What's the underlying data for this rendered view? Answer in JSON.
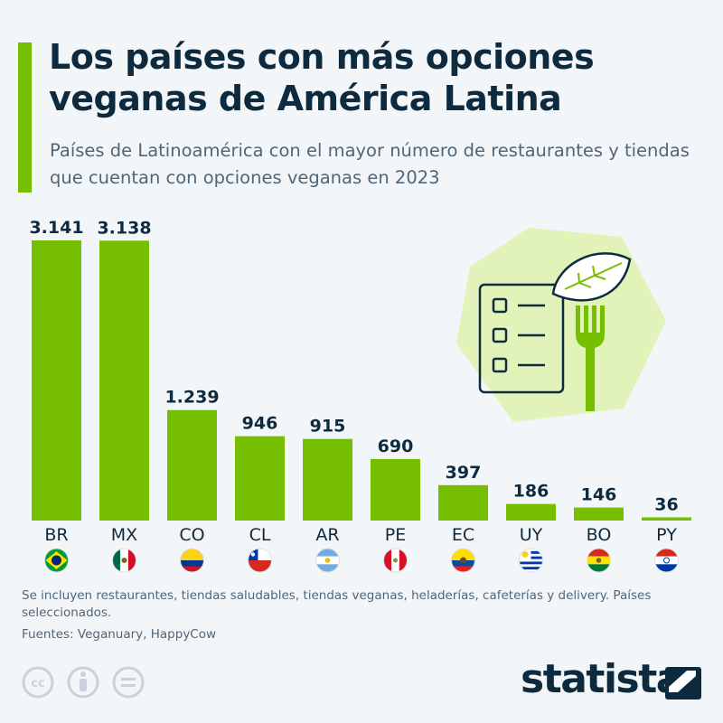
{
  "header": {
    "title": "Los países con más opciones veganas de América Latina",
    "subtitle": "Países de Latinoamérica con el mayor número de restaurantes y tiendas que cuentan con opciones veganas en 2023"
  },
  "chart_data": {
    "type": "bar",
    "categories": [
      "BR",
      "MX",
      "CO",
      "CL",
      "AR",
      "PE",
      "EC",
      "UY",
      "BO",
      "PY"
    ],
    "values": [
      3141,
      3138,
      1239,
      946,
      915,
      690,
      397,
      186,
      146,
      36
    ],
    "value_labels": [
      "3.141",
      "3.138",
      "1.239",
      "946",
      "915",
      "690",
      "397",
      "186",
      "146",
      "36"
    ],
    "flags": [
      "brazil-flag",
      "mexico-flag",
      "colombia-flag",
      "chile-flag",
      "argentina-flag",
      "peru-flag",
      "ecuador-flag",
      "uruguay-flag",
      "bolivia-flag",
      "paraguay-flag"
    ],
    "bar_color": "#76be00",
    "ylim": [
      0,
      3141
    ],
    "grid": false,
    "legend": "none"
  },
  "footer": {
    "notes": "Se incluyen restaurantes, tiendas saludables, tiendas veganas, heladerías, cafeterías y delivery. Países seleccionados.",
    "sources": "Fuentes: Veganuary, HappyCow",
    "brand": "statista"
  },
  "colors": {
    "accent": "#76be00",
    "text": "#0e2a3f",
    "muted": "#4f6678",
    "background": "#f3f6f9"
  },
  "icons": {
    "illustration": "vegan-menu-icon",
    "license": [
      "cc-icon",
      "attribution-icon",
      "no-derivatives-icon"
    ]
  }
}
